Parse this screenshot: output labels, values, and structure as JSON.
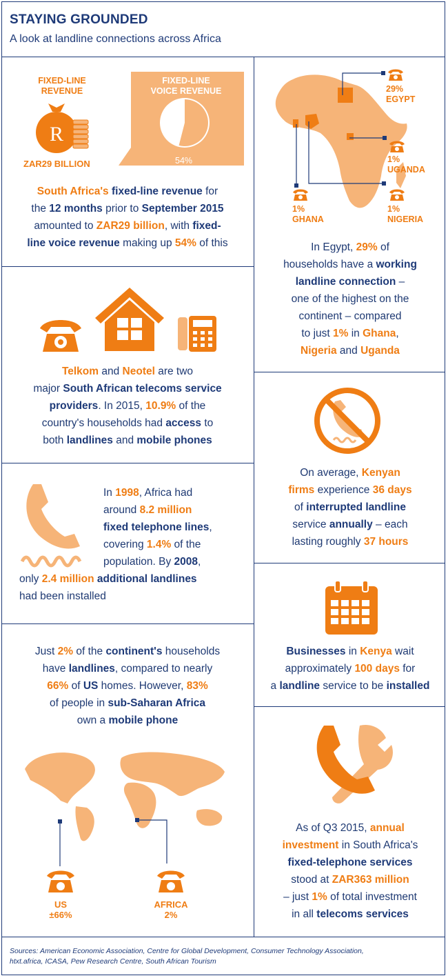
{
  "header": {
    "title": "STAYING GROUNDED",
    "subtitle": "A look at landline connections across Africa"
  },
  "revenue": {
    "fixed_line_label_1": "FIXED-LINE",
    "fixed_line_label_2": "REVENUE",
    "voice_label_1": "FIXED-LINE",
    "voice_label_2": "VOICE REVENUE",
    "amount": "ZAR29 BILLION",
    "pie_percent": "54%",
    "coin_symbol": "R",
    "voice_share": 54,
    "l1": [
      "South Africa's",
      " fixed-line revenue",
      " for"
    ],
    "l2": [
      "the ",
      "12 months",
      " prior to ",
      "September 2015"
    ],
    "l3": [
      "amounted to ",
      "ZAR29 billion",
      ", with ",
      "fixed-"
    ],
    "l4": [
      "line voice revenue",
      " making up ",
      "54%",
      " of this"
    ]
  },
  "egypt": {
    "labels": {
      "egypt_pct": "29%",
      "egypt": "EGYPT",
      "uganda_pct": "1%",
      "uganda": "UGANDA",
      "ghana_pct": "1%",
      "ghana": "GHANA",
      "nigeria_pct": "1%",
      "nigeria": "NIGERIA"
    },
    "l1": [
      "In Egypt, ",
      "29%",
      " of"
    ],
    "l2": [
      "households have a ",
      "working"
    ],
    "l3": [
      "landline connection",
      " –"
    ],
    "l4": "one of the highest on the",
    "l5": "continent – compared",
    "l6": [
      "to just ",
      "1%",
      " in ",
      "Ghana",
      ","
    ],
    "l7": [
      "Nigeria",
      " and ",
      "Uganda"
    ]
  },
  "telkom": {
    "l1": [
      "Telkom",
      " and ",
      "Neotel",
      " are two"
    ],
    "l2": [
      "major ",
      "South African telecoms service"
    ],
    "l3": [
      "providers",
      ". In 2015, ",
      "10.9%",
      " of the"
    ],
    "l4": [
      "country's households had ",
      "access",
      " to"
    ],
    "l5": [
      "both ",
      "landlines",
      " and ",
      "mobile phones"
    ]
  },
  "kenya_firms": {
    "l1": [
      "On average, ",
      "Kenyan"
    ],
    "l2": [
      "firms",
      " experience ",
      "36 days"
    ],
    "l3": [
      "of ",
      "interrupted landline"
    ],
    "l4": [
      "service ",
      "annually",
      " – each"
    ],
    "l5": [
      "lasting roughly ",
      "37 hours"
    ]
  },
  "history": {
    "l1": [
      "In ",
      "1998",
      ", Africa had"
    ],
    "l2": [
      "around ",
      "8.2 million"
    ],
    "l3": [
      "fixed telephone lines",
      ","
    ],
    "l4": [
      "covering ",
      "1.4%",
      " of the"
    ],
    "l5": [
      "population. By ",
      "2008",
      ","
    ],
    "l6": [
      "only ",
      "2.4 million",
      " additional landlines"
    ],
    "l7": "had been installed"
  },
  "kenya_install": {
    "l1": [
      "Businesses",
      " in ",
      "Kenya",
      " wait"
    ],
    "l2": [
      "approximately ",
      "100 days",
      " for"
    ],
    "l3": [
      "a ",
      "landline",
      " service to be ",
      "installed"
    ]
  },
  "continent": {
    "l1": [
      "Just ",
      "2%",
      " of the ",
      "continent's",
      " households"
    ],
    "l2": [
      "have ",
      "landlines",
      ", compared to nearly"
    ],
    "l3": [
      "66%",
      " of ",
      "US",
      " homes. However, ",
      "83%"
    ],
    "l4": [
      "of people in ",
      "sub-Saharan Africa"
    ],
    "l5": [
      "own a ",
      "mobile phone"
    ],
    "us_label": "US",
    "us_value": "±66%",
    "africa_label": "AFRICA",
    "africa_value": "2%"
  },
  "investment": {
    "l1": [
      "As of Q3 2015, ",
      "annual"
    ],
    "l2": [
      "investment",
      " in South Africa's"
    ],
    "l3": "fixed-telephone services",
    "l4": [
      "stood at ",
      "ZAR363 million"
    ],
    "l5": [
      "– just ",
      "1%",
      " of total investment"
    ],
    "l6": [
      "in all ",
      "telecoms services"
    ]
  },
  "sources": {
    "line1": "Sources: American Economic Association, Centre for Global Development, Consumer Technology Association,",
    "line2": "htxt.africa, ICASA, Pew Research Centre, South African Tourism"
  },
  "colors": {
    "orange": "#ef7d14",
    "light_orange": "#f6b478",
    "navy": "#1e3a78"
  }
}
